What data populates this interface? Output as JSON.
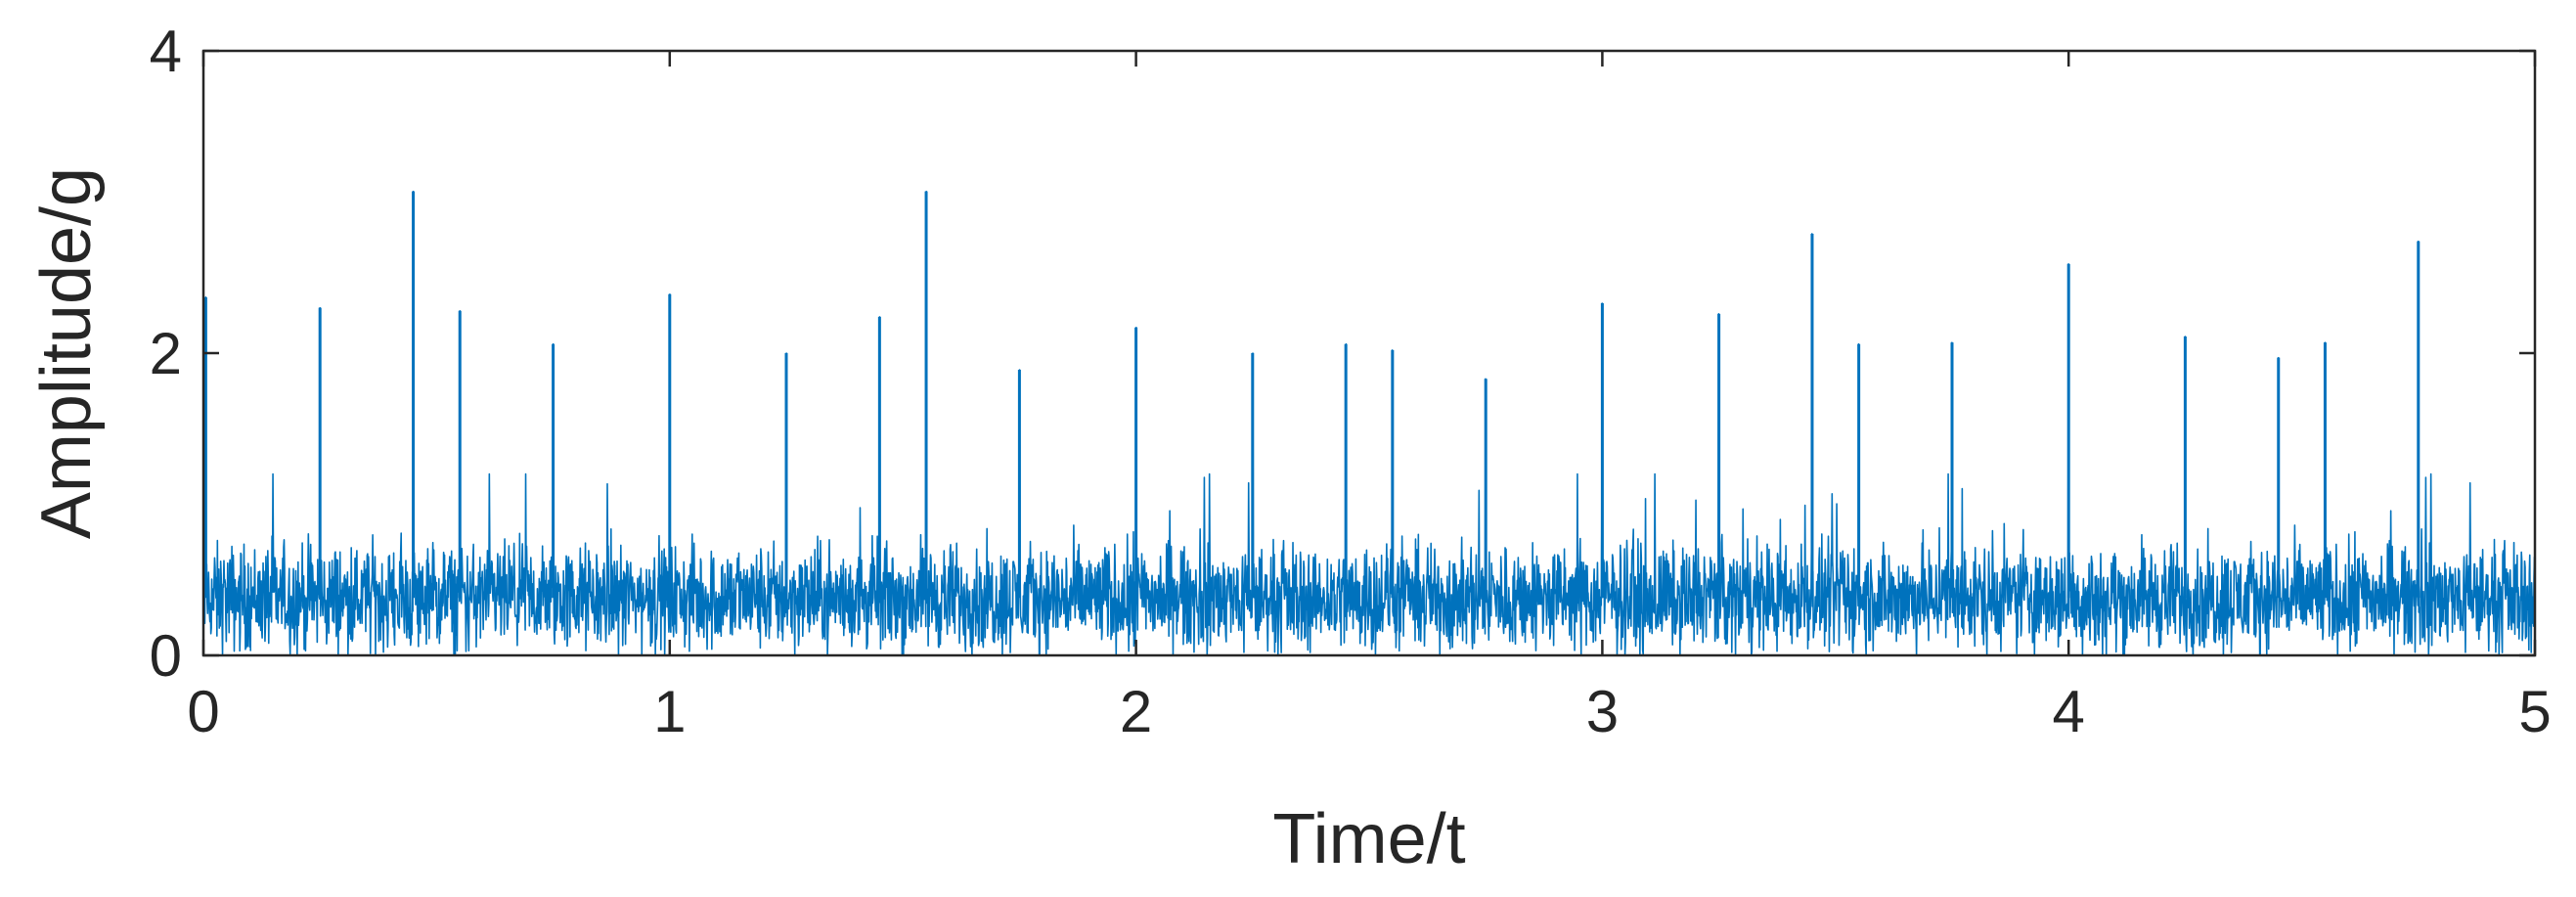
{
  "chart_data": {
    "type": "line",
    "title": "",
    "xlabel": "Time/t",
    "ylabel": "Amplitude/g",
    "xlim": [
      0,
      5
    ],
    "ylim": [
      0,
      4
    ],
    "x_ticks": [
      "0",
      "1",
      "2",
      "3",
      "4",
      "5"
    ],
    "y_ticks": [
      "0",
      "2",
      "4"
    ],
    "grid": false,
    "line_color": "#0072BD",
    "baseline_noise": {
      "min": 0.0,
      "typical": 0.38,
      "max": 1.2
    },
    "series": [
      {
        "x": [
          0.005,
          0.25,
          0.45,
          0.55,
          0.75,
          1.0,
          1.25,
          1.45,
          1.55,
          1.75,
          2.0,
          2.25,
          2.45,
          2.55,
          2.75,
          3.0,
          3.25,
          3.45,
          3.55,
          3.75,
          4.0,
          4.25,
          4.45,
          4.55,
          4.75
        ],
        "y": [
          2.37,
          2.3,
          3.07,
          2.28,
          2.06,
          2.39,
          2.0,
          2.24,
          3.07,
          1.89,
          2.17,
          2.0,
          2.06,
          2.02,
          1.83,
          2.33,
          2.26,
          2.79,
          2.06,
          2.07,
          2.59,
          2.11,
          1.97,
          2.07,
          2.74
        ]
      }
    ]
  }
}
